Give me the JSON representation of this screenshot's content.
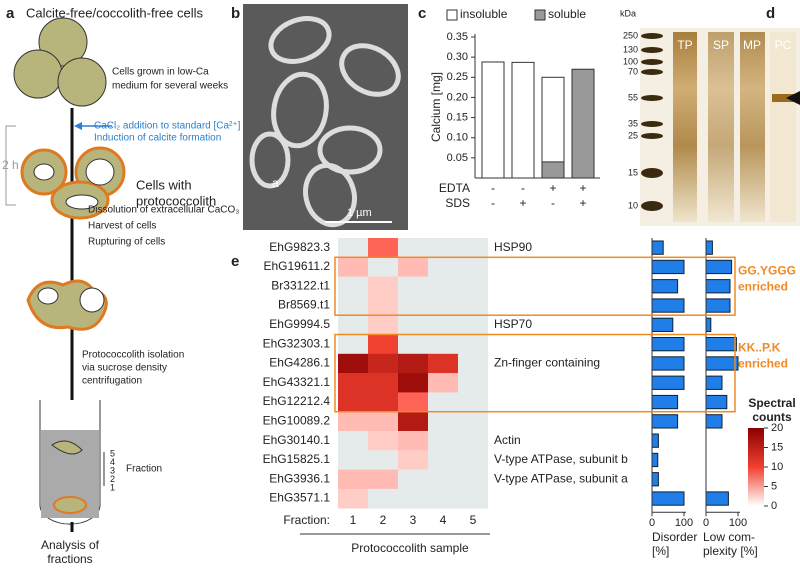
{
  "panel_a": {
    "letter": "a",
    "title": "Calcite-free/coccolith-free cells",
    "grown": [
      "Cells grown in low-Ca",
      "medium for several weeks"
    ],
    "induction": [
      "CaCl₂ addition to standard [Ca²⁺]",
      "Induction of calcite formation"
    ],
    "duration": "2 h",
    "cells": [
      "Cells with",
      "protococcolith"
    ],
    "steps": [
      "Dissolution of extracellular CaCO₃",
      "Harvest of cells",
      "Rupturing of cells"
    ],
    "isolation": [
      "Protococcolith isolation",
      "via sucrose density",
      "centrifugation"
    ],
    "fraction_numbers": [
      "5",
      "4",
      "3",
      "2",
      "1"
    ],
    "fraction_label": "Fraction",
    "analysis": [
      "Analysis of",
      "fractions"
    ]
  },
  "panel_b": {
    "letter": "b",
    "scale_bar": "1 µm",
    "inset_label": "a"
  },
  "panel_c": {
    "letter": "c",
    "type": "bar",
    "ylabel": "Calcium [mg]",
    "series": [
      {
        "name": "insoluble",
        "color": "#ffffff",
        "values": [
          0.288,
          0.287,
          0.25,
          0
        ]
      },
      {
        "name": "soluble",
        "color": "#999999",
        "values": [
          0,
          0,
          0.04,
          0.27
        ]
      }
    ],
    "ylim": [
      0,
      0.35
    ],
    "yticks": [
      0.05,
      {
        "value": 0.1,
        "label": "0.10"
      },
      0.15,
      {
        "value": 0.2,
        "label": "0.20"
      },
      0.25,
      {
        "value": 0.3,
        "label": "0.30"
      },
      0.35
    ],
    "rows": [
      {
        "name": "EDTA",
        "signs": [
          "-",
          "-",
          "+",
          "+"
        ]
      },
      {
        "name": "SDS",
        "signs": [
          "-",
          "+",
          "-",
          "+"
        ]
      }
    ]
  },
  "panel_d": {
    "letter": "d",
    "unit": "kDa",
    "markers": [
      "250",
      "130",
      "100",
      "70",
      "55",
      "35",
      "25",
      "15",
      "10"
    ],
    "lanes": [
      "TP",
      "SP",
      "MP",
      "PC"
    ]
  },
  "panel_e": {
    "letter": "e",
    "proteins": [
      "EhG9823.3",
      "EhG19611.2",
      "Br33122.t1",
      "Br8569.t1",
      "EhG9994.5",
      "EhG32303.1",
      "EhG4286.1",
      "EhG43321.1",
      "EhG12212.4",
      "EhG10089.2",
      "EhG30140.1",
      "EhG15825.1",
      "EhG3936.1",
      "EhG3571.1"
    ],
    "counts": [
      [
        0,
        8,
        0,
        0,
        0
      ],
      [
        3,
        0,
        3,
        0,
        0
      ],
      [
        0,
        2,
        0,
        0,
        0
      ],
      [
        0,
        2,
        0,
        0,
        0
      ],
      [
        0,
        2,
        0,
        0,
        0
      ],
      [
        0,
        10,
        0,
        0,
        0
      ],
      [
        18,
        14,
        16,
        12,
        0
      ],
      [
        12,
        12,
        18,
        3,
        0
      ],
      [
        12,
        12,
        8,
        0,
        0
      ],
      [
        3,
        3,
        16,
        0,
        0
      ],
      [
        0,
        2,
        3,
        0,
        0
      ],
      [
        0,
        0,
        2,
        0,
        0
      ],
      [
        3,
        3,
        0,
        0,
        0
      ],
      [
        2,
        0,
        0,
        0,
        0
      ]
    ],
    "annotations": [
      {
        "row": 0,
        "text": "HSP90"
      },
      {
        "row": 4,
        "text": "HSP70"
      },
      {
        "row": 6,
        "text": "Zn-finger containing"
      },
      {
        "row": 10,
        "text": "Actin"
      },
      {
        "row": 11,
        "text": "V-type ATPase, subunit b"
      },
      {
        "row": 12,
        "text": "V-type ATPase, subunit a"
      }
    ],
    "fraction_prefix": "Fraction:",
    "fractions": [
      "1",
      "2",
      "3",
      "4",
      "5"
    ],
    "xlabel": "Protococcolith sample",
    "disorder": [
      35,
      100,
      80,
      100,
      65,
      100,
      100,
      100,
      80,
      80,
      20,
      18,
      20,
      100
    ],
    "low_complexity": [
      20,
      80,
      75,
      75,
      15,
      95,
      100,
      50,
      65,
      50,
      0,
      0,
      0,
      70
    ],
    "bar_color": "#1f7ee8",
    "bar_ticks": [
      0,
      100
    ],
    "disorder_label": [
      "Disorder",
      "[%]"
    ],
    "low_complexity_label": [
      "Low com-",
      "plexity [%]"
    ],
    "boxes": [
      {
        "rows": [
          1,
          3
        ],
        "label": [
          "GG.YGGG",
          "enriched"
        ]
      },
      {
        "rows": [
          5,
          8
        ],
        "label": [
          "KK..P.K",
          "enriched"
        ]
      }
    ],
    "box_color": "#f08a24",
    "colorbar": {
      "title": [
        "Spectral",
        "counts"
      ],
      "lim": [
        0,
        20
      ],
      "ticks": [
        0,
        5,
        10,
        15,
        20
      ]
    }
  }
}
